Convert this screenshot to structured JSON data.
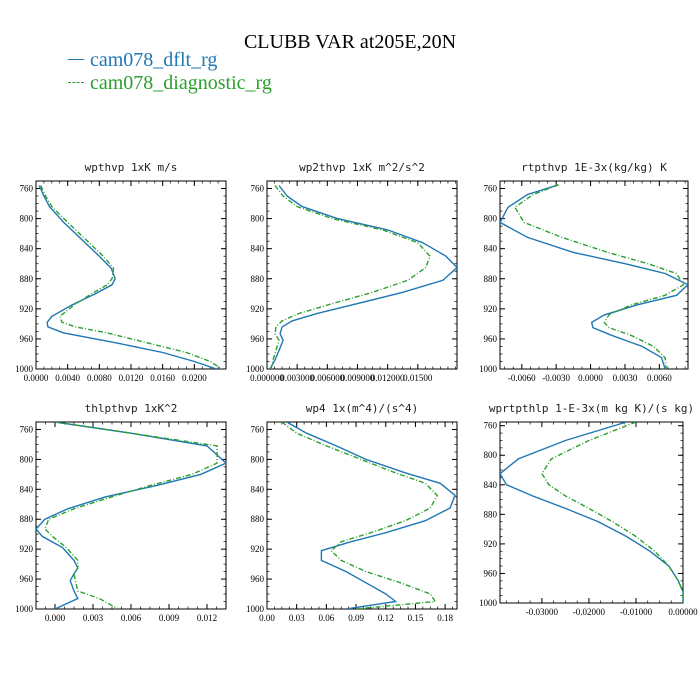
{
  "title": "CLUBB VAR at205E,20N",
  "colors": {
    "dflt": "#1f77b4",
    "diag": "#2ca02c"
  },
  "legend": [
    {
      "label": "cam078_dflt_rg",
      "color": "#1f77b4",
      "dash": false
    },
    {
      "label": "cam078_diagnostic_rg",
      "color": "#2ca02c",
      "dash": true
    }
  ],
  "chart_data": [
    {
      "type": "line",
      "title": "wpthvp   1xK m/s",
      "xlim": [
        0.0,
        0.024
      ],
      "ylim": [
        1000,
        750
      ],
      "xticks": [
        0,
        0.004,
        0.008,
        0.012,
        0.016,
        0.02
      ],
      "xtick_labels": [
        "0.0000",
        "0.0040",
        "0.0080",
        "0.0120",
        "0.0160",
        "0.0200"
      ],
      "yticks": [
        760,
        800,
        840,
        880,
        920,
        960,
        1000
      ],
      "series": [
        {
          "name": "cam078_dflt_rg",
          "points": [
            [
              0.0004,
              756
            ],
            [
              0.001,
              770
            ],
            [
              0.0017,
              784
            ],
            [
              0.0035,
              805
            ],
            [
              0.0055,
              825
            ],
            [
              0.008,
              850
            ],
            [
              0.0095,
              866
            ],
            [
              0.01,
              880
            ],
            [
              0.0096,
              888
            ],
            [
              0.0075,
              900
            ],
            [
              0.0045,
              915
            ],
            [
              0.002,
              930
            ],
            [
              0.0014,
              938
            ],
            [
              0.0015,
              944
            ],
            [
              0.0035,
              952
            ],
            [
              0.01,
              965
            ],
            [
              0.016,
              978
            ],
            [
              0.02,
              990
            ],
            [
              0.0228,
              1000
            ]
          ]
        },
        {
          "name": "cam078_diagnostic_rg",
          "points": [
            [
              0.0006,
              756
            ],
            [
              0.0012,
              770
            ],
            [
              0.002,
              784
            ],
            [
              0.004,
              805
            ],
            [
              0.006,
              825
            ],
            [
              0.0085,
              850
            ],
            [
              0.0098,
              866
            ],
            [
              0.0096,
              880
            ],
            [
              0.009,
              888
            ],
            [
              0.007,
              900
            ],
            [
              0.0048,
              915
            ],
            [
              0.003,
              930
            ],
            [
              0.0033,
              938
            ],
            [
              0.005,
              944
            ],
            [
              0.009,
              952
            ],
            [
              0.014,
              965
            ],
            [
              0.019,
              978
            ],
            [
              0.022,
              990
            ],
            [
              0.0235,
              1000
            ]
          ]
        }
      ]
    },
    {
      "type": "line",
      "title": "wp2thvp   1xK m^2/s^2",
      "xlim": [
        0.0,
        0.0189
      ],
      "ylim": [
        1000,
        750
      ],
      "xticks": [
        0,
        0.003,
        0.006,
        0.009,
        0.012,
        0.015
      ],
      "xtick_labels": [
        "0.000000",
        "0.003000",
        "0.006000",
        "0.009000",
        "0.012000",
        "0.01500"
      ],
      "yticks": [
        760,
        800,
        840,
        880,
        920,
        960,
        1000
      ],
      "series": [
        {
          "name": "cam078_dflt_rg",
          "points": [
            [
              0.0012,
              756
            ],
            [
              0.002,
              770
            ],
            [
              0.0035,
              784
            ],
            [
              0.007,
              800
            ],
            [
              0.012,
              815
            ],
            [
              0.0155,
              832
            ],
            [
              0.0178,
              850
            ],
            [
              0.0189,
              865
            ],
            [
              0.0175,
              882
            ],
            [
              0.0135,
              898
            ],
            [
              0.009,
              913
            ],
            [
              0.005,
              926
            ],
            [
              0.0025,
              936
            ],
            [
              0.0015,
              944
            ],
            [
              0.0013,
              953
            ],
            [
              0.0016,
              962
            ],
            [
              0.0012,
              975
            ],
            [
              0.0008,
              988
            ],
            [
              0.0003,
              1000
            ]
          ]
        },
        {
          "name": "cam078_diagnostic_rg",
          "points": [
            [
              0.0008,
              756
            ],
            [
              0.0016,
              770
            ],
            [
              0.003,
              784
            ],
            [
              0.0065,
              800
            ],
            [
              0.0115,
              815
            ],
            [
              0.015,
              832
            ],
            [
              0.0162,
              850
            ],
            [
              0.0158,
              865
            ],
            [
              0.014,
              882
            ],
            [
              0.0105,
              898
            ],
            [
              0.0065,
              913
            ],
            [
              0.0032,
              926
            ],
            [
              0.0015,
              936
            ],
            [
              0.0009,
              944
            ],
            [
              0.0008,
              953
            ],
            [
              0.0012,
              962
            ],
            [
              0.0009,
              975
            ],
            [
              0.0006,
              988
            ],
            [
              0.0004,
              1000
            ]
          ]
        }
      ]
    },
    {
      "type": "line",
      "title": "rtpthvp   1E-3x(kg/kg) K",
      "xlim": [
        -0.0079,
        0.0085
      ],
      "ylim": [
        1000,
        750
      ],
      "xticks": [
        -0.006,
        -0.003,
        0.0,
        0.003,
        0.006
      ],
      "xtick_labels": [
        "-0.0060",
        "-0.0030",
        "0.0000",
        "0.0030",
        "0.0060"
      ],
      "yticks": [
        760,
        800,
        840,
        880,
        920,
        960,
        1000
      ],
      "series": [
        {
          "name": "cam078_dflt_rg",
          "points": [
            [
              -0.0028,
              755
            ],
            [
              -0.0055,
              768
            ],
            [
              -0.0072,
              785
            ],
            [
              -0.0079,
              805
            ],
            [
              -0.0055,
              825
            ],
            [
              -0.0015,
              845
            ],
            [
              0.003,
              860
            ],
            [
              0.0065,
              873
            ],
            [
              0.0085,
              888
            ],
            [
              0.0075,
              902
            ],
            [
              0.004,
              915
            ],
            [
              0.0012,
              928
            ],
            [
              0.0001,
              938
            ],
            [
              0.0002,
              945
            ],
            [
              0.0018,
              955
            ],
            [
              0.0045,
              970
            ],
            [
              0.0062,
              985
            ],
            [
              0.0065,
              1000
            ]
          ]
        },
        {
          "name": "cam078_diagnostic_rg",
          "points": [
            [
              -0.0028,
              755
            ],
            [
              -0.005,
              768
            ],
            [
              -0.0066,
              785
            ],
            [
              -0.0058,
              805
            ],
            [
              -0.0025,
              825
            ],
            [
              0.0015,
              845
            ],
            [
              0.005,
              860
            ],
            [
              0.0075,
              873
            ],
            [
              0.0081,
              888
            ],
            [
              0.0065,
              902
            ],
            [
              0.0035,
              915
            ],
            [
              0.0016,
              928
            ],
            [
              0.0012,
              938
            ],
            [
              0.0016,
              945
            ],
            [
              0.0035,
              955
            ],
            [
              0.0055,
              970
            ],
            [
              0.0065,
              985
            ],
            [
              0.0066,
              1000
            ]
          ]
        }
      ]
    },
    {
      "type": "line",
      "title": "thlpthvp   1xK^2",
      "xlim": [
        -0.0015,
        0.0135
      ],
      "ylim": [
        1000,
        750
      ],
      "xticks": [
        0,
        0.003,
        0.006,
        0.009,
        0.012
      ],
      "xtick_labels": [
        "0.000",
        "0.003",
        "0.006",
        "0.009",
        "0.012"
      ],
      "yticks": [
        760,
        800,
        840,
        880,
        920,
        960,
        1000
      ],
      "series": [
        {
          "name": "cam078_dflt_rg",
          "points": [
            [
              0.0,
              750
            ],
            [
              0.006,
              765
            ],
            [
              0.012,
              782
            ],
            [
              0.0135,
              805
            ],
            [
              0.0115,
              820
            ],
            [
              0.008,
              835
            ],
            [
              0.004,
              850
            ],
            [
              0.001,
              866
            ],
            [
              -0.0008,
              880
            ],
            [
              -0.0015,
              893
            ],
            [
              -0.001,
              903
            ],
            [
              0.0006,
              918
            ],
            [
              0.0015,
              935
            ],
            [
              0.0018,
              945
            ],
            [
              0.0015,
              953
            ],
            [
              0.0012,
              962
            ],
            [
              0.0015,
              976
            ],
            [
              0.0018,
              986
            ],
            [
              0.0,
              1000
            ]
          ]
        },
        {
          "name": "cam078_diagnostic_rg",
          "points": [
            [
              0.0,
              750
            ],
            [
              0.006,
              765
            ],
            [
              0.0128,
              782
            ],
            [
              0.0128,
              805
            ],
            [
              0.0108,
              820
            ],
            [
              0.0075,
              835
            ],
            [
              0.0045,
              850
            ],
            [
              0.0015,
              866
            ],
            [
              -0.0005,
              880
            ],
            [
              -0.0008,
              893
            ],
            [
              -0.0002,
              903
            ],
            [
              0.0009,
              918
            ],
            [
              0.0018,
              935
            ],
            [
              0.0018,
              945
            ],
            [
              0.0015,
              953
            ],
            [
              0.0016,
              962
            ],
            [
              0.0018,
              976
            ],
            [
              0.0035,
              986
            ],
            [
              0.005,
              1000
            ]
          ]
        }
      ]
    },
    {
      "type": "line",
      "title": "wp4   1x(m^4)/(s^4)",
      "xlim": [
        0.0,
        0.192
      ],
      "ylim": [
        1000,
        750
      ],
      "xticks": [
        0,
        0.03,
        0.06,
        0.09,
        0.12,
        0.15,
        0.18
      ],
      "xtick_labels": [
        "0.00",
        "0.03",
        "0.06",
        "0.09",
        "0.12",
        "0.15",
        "0.18"
      ],
      "yticks": [
        760,
        800,
        840,
        880,
        920,
        960,
        1000
      ],
      "series": [
        {
          "name": "cam078_dflt_rg",
          "points": [
            [
              0.02,
              750
            ],
            [
              0.04,
              765
            ],
            [
              0.07,
              782
            ],
            [
              0.1,
              800
            ],
            [
              0.14,
              818
            ],
            [
              0.175,
              832
            ],
            [
              0.19,
              848
            ],
            [
              0.185,
              865
            ],
            [
              0.16,
              882
            ],
            [
              0.12,
              898
            ],
            [
              0.085,
              910
            ],
            [
              0.055,
              922
            ],
            [
              0.055,
              935
            ],
            [
              0.08,
              950
            ],
            [
              0.1,
              965
            ],
            [
              0.12,
              980
            ],
            [
              0.13,
              990
            ],
            [
              0.08,
              1000
            ]
          ]
        },
        {
          "name": "cam078_diagnostic_rg",
          "points": [
            [
              0.015,
              750
            ],
            [
              0.03,
              765
            ],
            [
              0.06,
              782
            ],
            [
              0.095,
              800
            ],
            [
              0.13,
              818
            ],
            [
              0.16,
              832
            ],
            [
              0.172,
              848
            ],
            [
              0.165,
              865
            ],
            [
              0.14,
              882
            ],
            [
              0.105,
              898
            ],
            [
              0.075,
              910
            ],
            [
              0.065,
              922
            ],
            [
              0.075,
              935
            ],
            [
              0.1,
              950
            ],
            [
              0.135,
              965
            ],
            [
              0.165,
              980
            ],
            [
              0.17,
              990
            ],
            [
              0.09,
              1000
            ]
          ]
        }
      ]
    },
    {
      "type": "line",
      "title": "wprtpthlp   1-E-3x(m kg K)/(s kg)",
      "xlim": [
        -0.0389,
        0.0
      ],
      "ylim": [
        1000,
        755
      ],
      "xticks": [
        -0.03,
        -0.02,
        -0.01,
        0.0
      ],
      "xtick_labels": [
        "-0.03000",
        "-0.02000",
        "-0.01000",
        "0.00000"
      ],
      "yticks": [
        760,
        800,
        840,
        880,
        920,
        960,
        1000
      ],
      "series": [
        {
          "name": "cam078_dflt_rg",
          "points": [
            [
              -0.012,
              755
            ],
            [
              -0.025,
              780
            ],
            [
              -0.035,
              805
            ],
            [
              -0.0389,
              825
            ],
            [
              -0.0375,
              840
            ],
            [
              -0.032,
              855
            ],
            [
              -0.025,
              872
            ],
            [
              -0.018,
              890
            ],
            [
              -0.012,
              910
            ],
            [
              -0.007,
              930
            ],
            [
              -0.003,
              950
            ],
            [
              -0.001,
              970
            ],
            [
              0.0,
              985
            ],
            [
              0.0,
              1000
            ]
          ]
        },
        {
          "name": "cam078_diagnostic_rg",
          "points": [
            [
              -0.01,
              755
            ],
            [
              -0.02,
              780
            ],
            [
              -0.028,
              805
            ],
            [
              -0.03,
              825
            ],
            [
              -0.0285,
              840
            ],
            [
              -0.025,
              855
            ],
            [
              -0.02,
              872
            ],
            [
              -0.015,
              890
            ],
            [
              -0.01,
              910
            ],
            [
              -0.006,
              930
            ],
            [
              -0.003,
              950
            ],
            [
              -0.001,
              970
            ],
            [
              0.0,
              985
            ],
            [
              0.0,
              1000
            ]
          ]
        }
      ]
    }
  ]
}
